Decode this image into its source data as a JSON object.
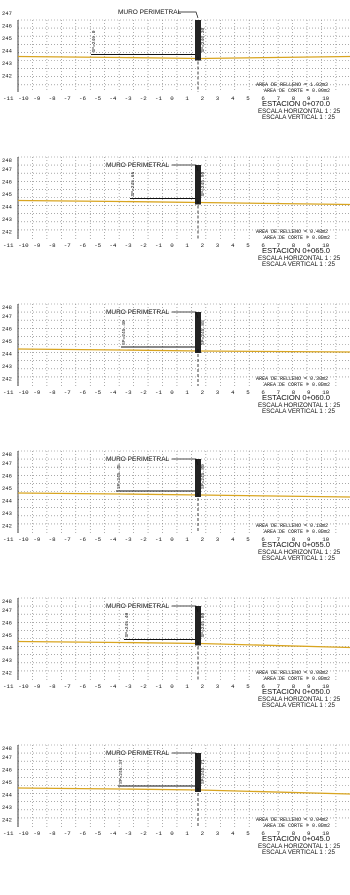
{
  "plan": {
    "wall_label": "MURO PERIMETRAL",
    "x_ticks": [
      "-11",
      "-10",
      "-9",
      "-8",
      "-7",
      "-6",
      "-5",
      "-4",
      "-3",
      "-2",
      "-1",
      "0",
      "1",
      "2",
      "3",
      "4",
      "5",
      "6",
      "7",
      "8",
      "9",
      "10"
    ],
    "elev_ticks": [
      "247",
      "246",
      "245",
      "244",
      "243",
      "242"
    ],
    "colors": {
      "terrain": "#d9a520",
      "grid": "#777777",
      "ink": "#111111"
    }
  },
  "sections": [
    {
      "station": "ESTACION 0+070.0",
      "scale_h": "ESCALA HORIZONTAL 1 : 25",
      "scale_v": "ESCALA VERTICAL 1 : 25",
      "fill": "AREA DE RELLENO = 1.02m2",
      "cut": "AREA DE CORTE = 0.00m2",
      "top_tick": "",
      "label_left": "SP=246.0",
      "label_right": "SP=246.30"
    },
    {
      "station": "ESTACION 0+065.0",
      "scale_h": "ESCALA HORIZONTAL 1 : 25",
      "scale_v": "ESCALA VERTICAL 1 : 25",
      "fill": "AREA DE RELLENO = 0.48m2",
      "cut": "AREA DE CORTE = 0.00m2",
      "top_tick": "248",
      "label_left": "SP=245.65",
      "label_right": "SP=245.90"
    },
    {
      "station": "ESTACION 0+060.0",
      "scale_h": "ESCALA HORIZONTAL 1 : 25",
      "scale_v": "ESCALA VERTICAL 1 : 25",
      "fill": "AREA DE RELLENO = 0.30m2",
      "cut": "AREA DE CORTE = 0.00m2",
      "top_tick": "248",
      "label_left": "SP=245.40",
      "label_right": "SP=245.85"
    },
    {
      "station": "ESTACION 0+055.0",
      "scale_h": "ESCALA HORIZONTAL 1 : 25",
      "scale_v": "ESCALA VERTICAL 1 : 25",
      "fill": "AREA DE RELLENO = 0.18m2",
      "cut": "AREA DE CORTE = 0.00m2",
      "top_tick": "248",
      "label_left": "SP=245.45",
      "label_right": "SP=245.80"
    },
    {
      "station": "ESTACION 0+050.0",
      "scale_h": "ESCALA HORIZONTAL 1 : 25",
      "scale_v": "ESCALA VERTICAL 1 : 25",
      "fill": "AREA DE RELLENO = 0.08m2",
      "cut": "AREA DE CORTE = 0.00m2",
      "top_tick": "248",
      "label_left": "SP=245.40",
      "label_right": "SP=245.80"
    },
    {
      "station": "ESTACION 0+045.0",
      "scale_h": "ESCALA HORIZONTAL 1 : 25",
      "scale_v": "ESCALA VERTICAL 1 : 25",
      "fill": "AREA DE RELLENO = 0.04m2",
      "cut": "AREA DE CORTE = 0.00m2",
      "top_tick": "248",
      "label_left": "SP=245.37",
      "label_right": "SP=245.71"
    }
  ]
}
